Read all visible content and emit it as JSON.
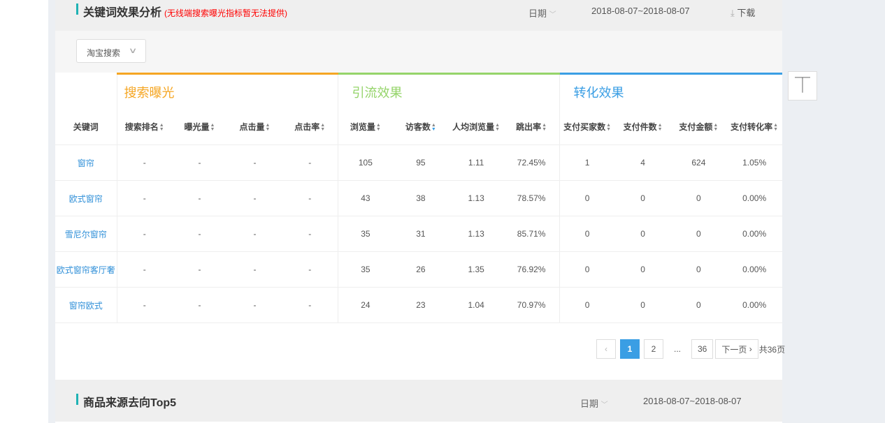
{
  "section1": {
    "title": "关键词效果分析",
    "note": "(无线端搜索曝光指标暂无法提供)",
    "date_label": "日期",
    "date_range": "2018-08-07~2018-08-07",
    "download": "下载"
  },
  "filter": {
    "source_select": "淘宝搜索"
  },
  "table": {
    "keyword_header": "关键词",
    "groups": [
      {
        "label": "搜索曝光",
        "color": "#f5a623"
      },
      {
        "label": "引流效果",
        "color": "#95d46a"
      },
      {
        "label": "转化效果",
        "color": "#3a9ee4"
      }
    ],
    "columns": [
      "搜索排名",
      "曝光量",
      "点击量",
      "点击率",
      "浏览量",
      "访客数",
      "人均浏览量",
      "跳出率",
      "支付买家数",
      "支付件数",
      "支付金额",
      "支付转化率"
    ],
    "active_sort": "访客数",
    "rows": [
      {
        "keyword": "窗帘",
        "values": [
          "-",
          "-",
          "-",
          "-",
          "105",
          "95",
          "1.11",
          "72.45%",
          "1",
          "4",
          "624",
          "1.05%"
        ]
      },
      {
        "keyword": "欧式窗帘",
        "values": [
          "-",
          "-",
          "-",
          "-",
          "43",
          "38",
          "1.13",
          "78.57%",
          "0",
          "0",
          "0",
          "0.00%"
        ]
      },
      {
        "keyword": "雪尼尔窗帘",
        "values": [
          "-",
          "-",
          "-",
          "-",
          "35",
          "31",
          "1.13",
          "85.71%",
          "0",
          "0",
          "0",
          "0.00%"
        ]
      },
      {
        "keyword": "欧式窗帘客厅奢",
        "values": [
          "-",
          "-",
          "-",
          "-",
          "35",
          "26",
          "1.35",
          "76.92%",
          "0",
          "0",
          "0",
          "0.00%"
        ]
      },
      {
        "keyword": "窗帘欧式",
        "values": [
          "-",
          "-",
          "-",
          "-",
          "24",
          "23",
          "1.04",
          "70.97%",
          "0",
          "0",
          "0",
          "0.00%"
        ]
      }
    ]
  },
  "pagination": {
    "prev": "‹",
    "pages": [
      "1",
      "2"
    ],
    "ellipsis": "...",
    "last": "36",
    "next": "下一页",
    "total": "共36页",
    "current": "1"
  },
  "section2": {
    "title": "商品来源去向Top5",
    "date_label": "日期",
    "date_range": "2018-08-07~2018-08-07"
  },
  "back_to_top": "⊤"
}
